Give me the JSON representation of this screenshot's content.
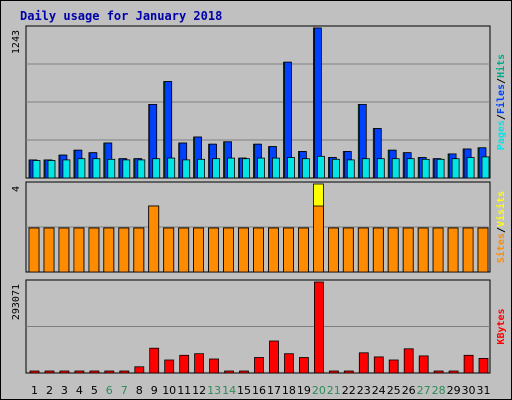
{
  "colors": {
    "pages": "#00e6e6",
    "files": "#0040ff",
    "hits": "#00aa88",
    "sites": "#ff8c00",
    "visits": "#ffff00",
    "kbytes": "#ff0000",
    "weekend": "#2e8b57",
    "title": "#0000aa",
    "panel_bg": "#c0c0c0"
  },
  "chart_data": {
    "type": "bar",
    "title": "Daily usage for January 2018",
    "categories": [
      "1",
      "2",
      "3",
      "4",
      "5",
      "6",
      "7",
      "8",
      "9",
      "10",
      "11",
      "12",
      "13",
      "14",
      "15",
      "16",
      "17",
      "18",
      "19",
      "20",
      "21",
      "22",
      "23",
      "24",
      "25",
      "26",
      "27",
      "28",
      "29",
      "30",
      "31"
    ],
    "weekend_days": [
      "6",
      "7",
      "13",
      "14",
      "20",
      "21",
      "27",
      "28"
    ],
    "panels": [
      {
        "id": "hits",
        "max_label": "1243",
        "ylim": [
          0,
          1243
        ],
        "legend": [
          {
            "text": "Pages",
            "color_key": "pages"
          },
          {
            "text": "/",
            "color_key": null
          },
          {
            "text": "Files",
            "color_key": "files"
          },
          {
            "text": "/",
            "color_key": null
          },
          {
            "text": "Hits",
            "color_key": "hits"
          }
        ],
        "series": [
          {
            "name": "Hits",
            "color_key": "hits",
            "values": [
              150,
              150,
              190,
              230,
              210,
              290,
              160,
              160,
              610,
              800,
              290,
              340,
              280,
              300,
              165,
              280,
              260,
              960,
              220,
              1243,
              170,
              220,
              610,
              410,
              230,
              210,
              170,
              160,
              200,
              240,
              250
            ]
          },
          {
            "name": "Files",
            "color_key": "files",
            "values": [
              150,
              150,
              190,
              230,
              210,
              290,
              160,
              160,
              610,
              800,
              290,
              340,
              280,
              300,
              165,
              280,
              260,
              960,
              220,
              1243,
              170,
              220,
              610,
              410,
              230,
              210,
              170,
              160,
              200,
              240,
              250
            ]
          },
          {
            "name": "Pages",
            "color_key": "pages",
            "values": [
              145,
              145,
              150,
              160,
              160,
              155,
              150,
              150,
              160,
              165,
              150,
              155,
              160,
              165,
              160,
              165,
              165,
              170,
              160,
              180,
              155,
              150,
              160,
              160,
              160,
              160,
              155,
              155,
              160,
              170,
              175
            ]
          }
        ]
      },
      {
        "id": "visits",
        "max_label": "4",
        "ylim": [
          0,
          4
        ],
        "legend": [
          {
            "text": "Sites",
            "color_key": "sites"
          },
          {
            "text": "/",
            "color_key": null
          },
          {
            "text": "Visits",
            "color_key": "visits"
          }
        ],
        "series": [
          {
            "name": "Visits",
            "color_key": "visits",
            "values": [
              2,
              2,
              2,
              2,
              2,
              2,
              2,
              2,
              3,
              2,
              2,
              2,
              2,
              2,
              2,
              2,
              2,
              2,
              2,
              4,
              2,
              2,
              2,
              2,
              2,
              2,
              2,
              2,
              2,
              2,
              2
            ]
          },
          {
            "name": "Sites",
            "color_key": "sites",
            "values": [
              2,
              2,
              2,
              2,
              2,
              2,
              2,
              2,
              3,
              2,
              2,
              2,
              2,
              2,
              2,
              2,
              2,
              2,
              2,
              3,
              2,
              2,
              2,
              2,
              2,
              2,
              2,
              2,
              2,
              2,
              2
            ]
          }
        ]
      },
      {
        "id": "kbytes",
        "max_label": "293071",
        "ylim": [
          0,
          293071
        ],
        "legend": [
          {
            "text": "KBytes",
            "color_key": "kbytes"
          }
        ],
        "series": [
          {
            "name": "KBytes",
            "color_key": "kbytes",
            "values": [
              3000,
              3000,
              3000,
              6000,
              3000,
              5000,
              5000,
              20000,
              80000,
              42000,
              57000,
              62000,
              45000,
              3000,
              5000,
              50000,
              103000,
              62000,
              50000,
              293071,
              3000,
              3000,
              65000,
              52000,
              42000,
              78000,
              55000,
              3000,
              3000,
              57000,
              47000
            ]
          }
        ]
      }
    ]
  }
}
